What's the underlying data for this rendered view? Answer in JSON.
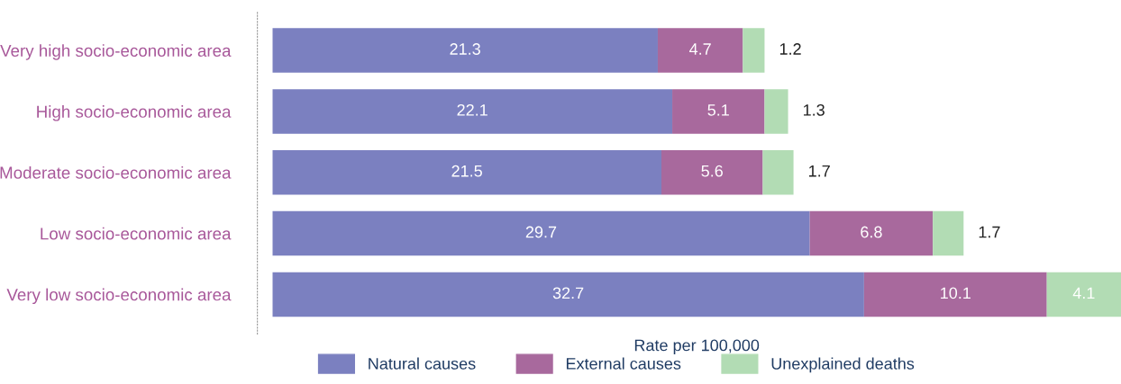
{
  "chart_data": {
    "type": "bar",
    "orientation": "horizontal",
    "stacked": true,
    "xlabel": "Rate per 100,000",
    "categories": [
      "Very high socio-economic area",
      "High socio-economic area",
      "Moderate socio-economic area",
      "Low socio-economic area",
      "Very low socio-economic area"
    ],
    "series": [
      {
        "name": "Natural causes",
        "color": "#7b80c0",
        "values": [
          21.3,
          22.1,
          21.5,
          29.7,
          32.7
        ]
      },
      {
        "name": "External causes",
        "color": "#a8699d",
        "values": [
          4.7,
          5.1,
          5.6,
          6.8,
          10.1
        ]
      },
      {
        "name": "Unexplained deaths",
        "color": "#b2dcb4",
        "values": [
          1.2,
          1.3,
          1.7,
          1.7,
          4.1
        ]
      }
    ],
    "data_labels": true,
    "legend": "bottom",
    "tick_labels": "y",
    "grid": false
  }
}
